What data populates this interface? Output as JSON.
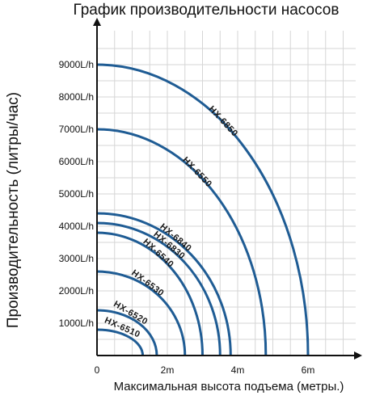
{
  "chart_data": {
    "type": "line",
    "title": "График производительности насосов",
    "ylabel": "Производительность (литры/час)",
    "xlabel": "Максимальная высота подъема (метры.)",
    "grid": true,
    "xlim": [
      0,
      7
    ],
    "ylim": [
      0,
      10000
    ],
    "x_ticks": [
      {
        "value": 0,
        "label": "0"
      },
      {
        "value": 2,
        "label": "2m"
      },
      {
        "value": 4,
        "label": "4m"
      },
      {
        "value": 6,
        "label": "6m"
      }
    ],
    "y_ticks": [
      {
        "value": 1000,
        "label": "1000L/h"
      },
      {
        "value": 2000,
        "label": "2000L/h"
      },
      {
        "value": 3000,
        "label": "3000L/h"
      },
      {
        "value": 4000,
        "label": "4000L/h"
      },
      {
        "value": 5000,
        "label": "5000L/h"
      },
      {
        "value": 6000,
        "label": "6000L/h"
      },
      {
        "value": 7000,
        "label": "7000L/h"
      },
      {
        "value": 8000,
        "label": "8000L/h"
      },
      {
        "value": 9000,
        "label": "9000L/h"
      }
    ],
    "series": [
      {
        "name": "HX-6510",
        "max_flow": 800,
        "max_head": 1.3
      },
      {
        "name": "HX-6520",
        "max_flow": 1400,
        "max_head": 1.7
      },
      {
        "name": "HX-6530",
        "max_flow": 2600,
        "max_head": 2.5
      },
      {
        "name": "HX-6540",
        "max_flow": 3800,
        "max_head": 3.0
      },
      {
        "name": "HX-6830",
        "max_flow": 4100,
        "max_head": 3.5
      },
      {
        "name": "HX-6840",
        "max_flow": 4400,
        "max_head": 3.8
      },
      {
        "name": "HX-6550",
        "max_flow": 7000,
        "max_head": 4.8
      },
      {
        "name": "HX-6850",
        "max_flow": 9000,
        "max_head": 6.0
      }
    ],
    "colors": {
      "curve": "#1f5c94",
      "grid": "#d6d6d6",
      "axis": "#111111"
    }
  }
}
